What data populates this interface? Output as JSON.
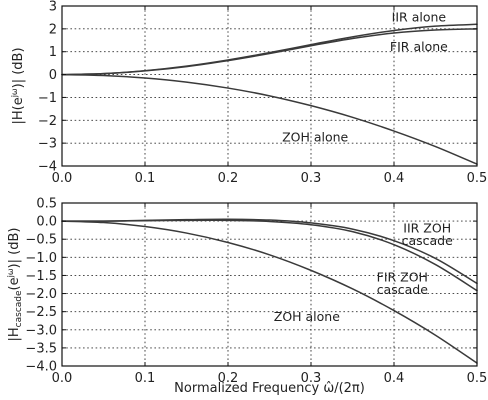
{
  "colors": {
    "line": "#3a3a3a",
    "grid": "#333333",
    "frame": "#111111"
  },
  "chart_data": [
    {
      "type": "line",
      "title": "",
      "xlabel": "",
      "ylabel": "|H(e^jω)| (dB)",
      "ylabel_parts": {
        "pre": "|H(e",
        "sup": "jω",
        "post": ")| (dB)"
      },
      "xlim": [
        0.0,
        0.5
      ],
      "ylim": [
        -4,
        3
      ],
      "xticks": [
        0.0,
        0.1,
        0.2,
        0.3,
        0.4,
        0.5
      ],
      "xtick_labels": [
        "0.0",
        "0.1",
        "0.2",
        "0.3",
        "0.4",
        "0.5"
      ],
      "yticks": [
        -4,
        -3,
        -2,
        -1,
        0,
        1,
        2,
        3
      ],
      "ytick_labels": [
        "−4",
        "−3",
        "−2",
        "−1",
        "0",
        "1",
        "2",
        "3"
      ],
      "grid": true,
      "x": [
        0.0,
        0.05,
        0.1,
        0.15,
        0.2,
        0.25,
        0.3,
        0.35,
        0.4,
        0.45,
        0.5
      ],
      "series": [
        {
          "values": [
            0.0,
            0.04,
            0.17,
            0.37,
            0.64,
            0.96,
            1.31,
            1.65,
            1.93,
            2.12,
            2.2
          ]
        },
        {
          "values": [
            0.0,
            0.04,
            0.16,
            0.35,
            0.61,
            0.92,
            1.26,
            1.58,
            1.82,
            1.95,
            2.0
          ]
        },
        {
          "values": [
            0.0,
            -0.04,
            -0.15,
            -0.33,
            -0.59,
            -0.93,
            -1.36,
            -1.87,
            -2.47,
            -3.15,
            -3.92
          ]
        }
      ],
      "annotations": [
        {
          "text": "IIR alone",
          "x": 0.43,
          "y": 2.5
        },
        {
          "text": "FIR alone",
          "x": 0.43,
          "y": 1.2
        },
        {
          "text": "ZOH alone",
          "x": 0.305,
          "y": -2.75
        }
      ]
    },
    {
      "type": "line",
      "title": "",
      "xlabel": "Normalized Frequency ω̂/(2π)",
      "ylabel": "|H_cascade(e^jω)| (dB)",
      "ylabel_parts": {
        "pre": "|H",
        "sub": "cascade",
        "mid": "(e",
        "sup": "jω",
        "post": ")| (dB)"
      },
      "xlim": [
        0.0,
        0.5
      ],
      "ylim": [
        -4,
        0.5
      ],
      "xticks": [
        0.0,
        0.1,
        0.2,
        0.3,
        0.4,
        0.5
      ],
      "xtick_labels": [
        "0.0",
        "0.1",
        "0.2",
        "0.3",
        "0.4",
        "0.5"
      ],
      "yticks": [
        -4.0,
        -3.5,
        -3.0,
        -2.5,
        -2.0,
        -1.5,
        -1.0,
        -0.5,
        0.0,
        0.5
      ],
      "ytick_labels": [
        "−4.0",
        "−3.5",
        "−3.0",
        "−2.5",
        "−2.0",
        "−1.5",
        "−1.0",
        "−0.5",
        "0.0",
        "0.5"
      ],
      "grid": true,
      "x": [
        0.0,
        0.05,
        0.1,
        0.15,
        0.2,
        0.25,
        0.3,
        0.35,
        0.4,
        0.45,
        0.5
      ],
      "series": [
        {
          "values": [
            0.0,
            0.0,
            0.02,
            0.04,
            0.05,
            0.03,
            -0.05,
            -0.22,
            -0.54,
            -1.03,
            -1.72
          ]
        },
        {
          "values": [
            0.0,
            0.0,
            0.01,
            0.02,
            0.02,
            -0.01,
            -0.1,
            -0.29,
            -0.65,
            -1.2,
            -1.92
          ]
        },
        {
          "values": [
            0.0,
            -0.04,
            -0.15,
            -0.33,
            -0.59,
            -0.93,
            -1.36,
            -1.87,
            -2.47,
            -3.15,
            -3.92
          ]
        }
      ],
      "annotations": [
        {
          "text": "IIR ZOH",
          "x": 0.44,
          "y": -0.2
        },
        {
          "text": "cascade",
          "x": 0.44,
          "y": -0.55
        },
        {
          "text": "FIR ZOH",
          "x": 0.41,
          "y": -1.55
        },
        {
          "text": "cascade",
          "x": 0.41,
          "y": -1.9
        },
        {
          "text": "ZOH alone",
          "x": 0.295,
          "y": -2.65
        }
      ]
    }
  ]
}
